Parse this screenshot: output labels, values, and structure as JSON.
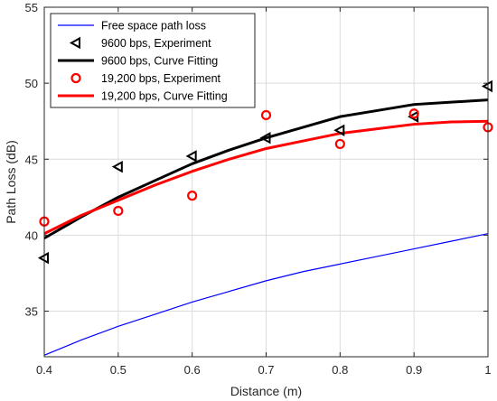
{
  "chart_data": {
    "type": "line",
    "xlabel": "Distance (m)",
    "ylabel": "Path Loss (dB)",
    "xlim": [
      0.4,
      1.0
    ],
    "ylim": [
      32,
      55
    ],
    "xticks": [
      0.4,
      0.5,
      0.6,
      0.7,
      0.8,
      0.9,
      1.0
    ],
    "xtick_labels": [
      "0.4",
      "0.5",
      "0.6",
      "0.7",
      "0.8",
      "0.9",
      "1"
    ],
    "yticks": [
      35,
      40,
      45,
      50,
      55
    ],
    "ytick_labels": [
      "35",
      "40",
      "45",
      "50",
      "55"
    ],
    "grid": true,
    "legend_position": "top-left",
    "series": [
      {
        "name": "Free space path loss",
        "kind": "line",
        "color": "#0000ff",
        "x": [
          0.4,
          0.45,
          0.5,
          0.55,
          0.6,
          0.65,
          0.7,
          0.75,
          0.8,
          0.85,
          0.9,
          0.95,
          1.0
        ],
        "y": [
          32.1,
          33.1,
          34.0,
          34.8,
          35.6,
          36.3,
          37.0,
          37.6,
          38.1,
          38.6,
          39.1,
          39.6,
          40.1
        ]
      },
      {
        "name": "9600 bps, Experiment",
        "kind": "marker",
        "marker": "triangle-left",
        "color": "#000000",
        "x": [
          0.4,
          0.5,
          0.6,
          0.7,
          0.8,
          0.9,
          1.0
        ],
        "y": [
          38.5,
          44.5,
          45.2,
          46.4,
          46.9,
          47.8,
          49.8
        ]
      },
      {
        "name": "9600 bps, Curve Fitting",
        "kind": "line",
        "color": "#000000",
        "x": [
          0.4,
          0.45,
          0.5,
          0.55,
          0.6,
          0.65,
          0.7,
          0.75,
          0.8,
          0.85,
          0.9,
          0.95,
          1.0
        ],
        "y": [
          39.8,
          41.2,
          42.5,
          43.6,
          44.7,
          45.6,
          46.4,
          47.1,
          47.8,
          48.2,
          48.6,
          48.75,
          48.9
        ]
      },
      {
        "name": "19,200 bps, Experiment",
        "kind": "marker",
        "marker": "circle",
        "color": "#ff0000",
        "x": [
          0.4,
          0.5,
          0.6,
          0.7,
          0.8,
          0.9,
          1.0
        ],
        "y": [
          40.9,
          41.6,
          42.6,
          47.9,
          46.0,
          48.0,
          47.1
        ]
      },
      {
        "name": "19,200 bps, Curve Fitting",
        "kind": "line",
        "color": "#ff0000",
        "x": [
          0.4,
          0.45,
          0.5,
          0.55,
          0.6,
          0.65,
          0.7,
          0.75,
          0.8,
          0.85,
          0.9,
          0.95,
          1.0
        ],
        "y": [
          40.1,
          41.3,
          42.3,
          43.3,
          44.2,
          45.0,
          45.7,
          46.2,
          46.7,
          47.0,
          47.3,
          47.45,
          47.5
        ]
      }
    ]
  }
}
